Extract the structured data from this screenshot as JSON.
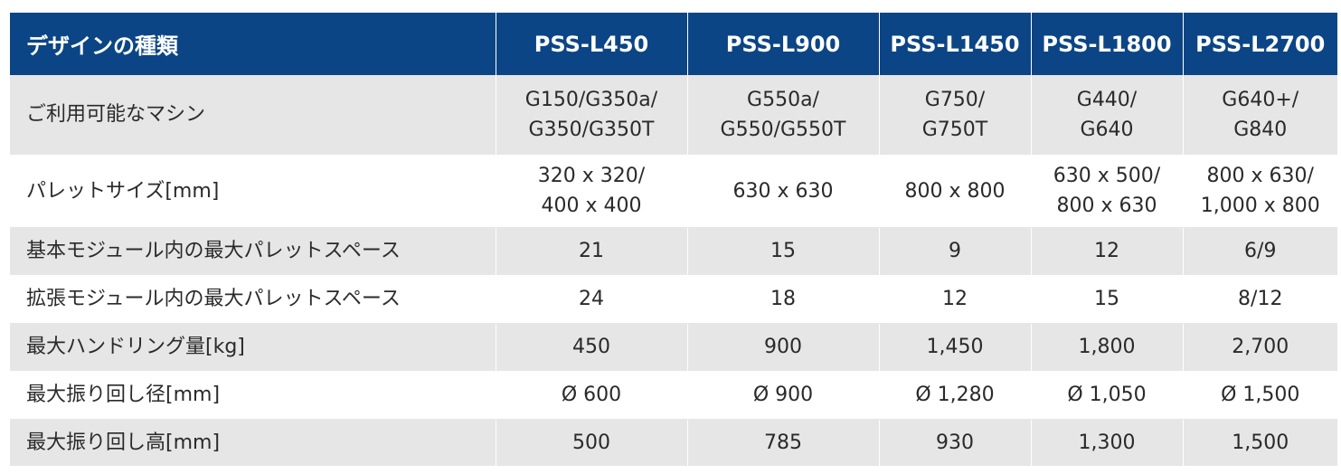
{
  "header": {
    "label": "デザインの種類",
    "models": [
      "PSS-L450",
      "PSS-L900",
      "PSS-L1450",
      "PSS-L1800",
      "PSS-L2700"
    ]
  },
  "rows": [
    {
      "label": "ご利用可能なマシン",
      "values": [
        "G150/G350a/\nG350/G350T",
        "G550a/\nG550/G550T",
        "G750/\nG750T",
        "G440/\nG640",
        "G640+/\nG840"
      ]
    },
    {
      "label": "パレットサイズ[mm]",
      "values": [
        "320 x 320/\n400 x 400",
        "630 x 630",
        "800 x 800",
        "630 x 500/\n800 x 630",
        "800 x 630/\n1,000 x 800"
      ]
    },
    {
      "label": "基本モジュール内の最大パレットスペース",
      "values": [
        "21",
        "15",
        "9",
        "12",
        "6/9"
      ]
    },
    {
      "label": "拡張モジュール内の最大パレットスペース",
      "values": [
        "24",
        "18",
        "12",
        "15",
        "8/12"
      ]
    },
    {
      "label": "最大ハンドリング量[kg]",
      "values": [
        "450",
        "900",
        "1,450",
        "1,800",
        "2,700"
      ]
    },
    {
      "label": "最大振り回し径[mm]",
      "values": [
        "Ø 600",
        "Ø 900",
        "Ø 1,280",
        "Ø 1,050",
        "Ø 1,500"
      ]
    },
    {
      "label": "最大振り回し高[mm]",
      "values": [
        "500",
        "785",
        "930",
        "1,300",
        "1,500"
      ]
    }
  ],
  "colors": {
    "header_bg": "#0c4585",
    "header_text": "#ffffff",
    "row_alt_bg": "#e6e6e7",
    "body_text": "#2a2a2a"
  }
}
